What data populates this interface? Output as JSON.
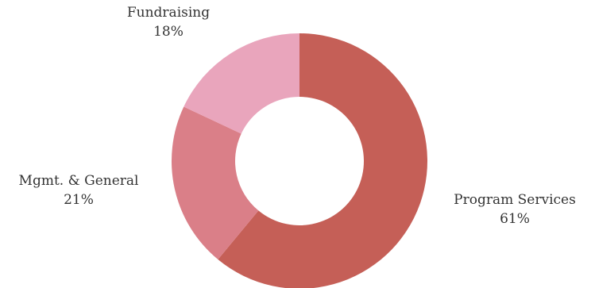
{
  "chart_data": {
    "type": "pie",
    "donut": true,
    "start_angle_deg": 0,
    "direction": "clockwise",
    "slices": [
      {
        "label": "Program Services",
        "value": 61,
        "value_label": "61%",
        "color": "#c55f57"
      },
      {
        "label": "Mgmt. & General",
        "value": 21,
        "value_label": "21%",
        "color": "#da7f88"
      },
      {
        "label": "Fundraising",
        "value": 18,
        "value_label": "18%",
        "color": "#e9a5bc"
      }
    ]
  }
}
